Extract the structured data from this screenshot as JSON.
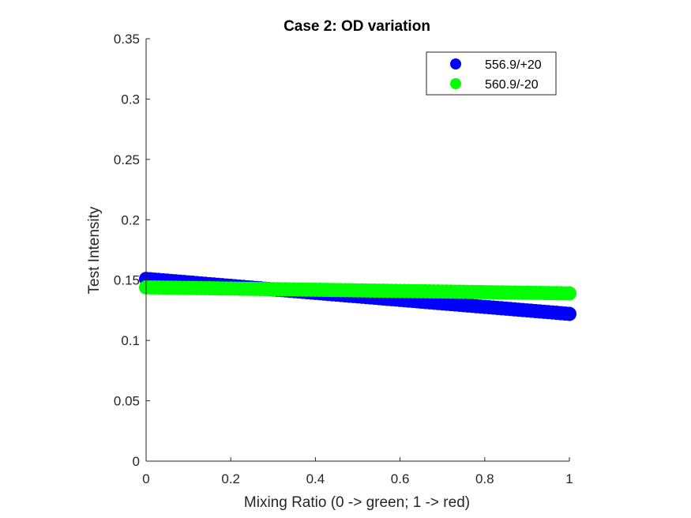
{
  "chart_data": {
    "type": "scatter",
    "title": "Case 2: OD variation",
    "xlabel": "Mixing Ratio (0 -> green; 1 -> red)",
    "ylabel": "Test Intensity",
    "xlim": [
      0,
      1
    ],
    "ylim": [
      0,
      0.35
    ],
    "xticks": [
      "0",
      "0.2",
      "0.4",
      "0.6",
      "0.8",
      "1"
    ],
    "yticks": [
      "0",
      "0.05",
      "0.1",
      "0.15",
      "0.2",
      "0.25",
      "0.3",
      "0.35"
    ],
    "grid": false,
    "legend_position": "top-right",
    "series": [
      {
        "name": "556.9/+20",
        "color": "#0000ff",
        "x_start": 0,
        "x_end": 1,
        "points": 101,
        "y_start": 0.151,
        "y_end": 0.122
      },
      {
        "name": "560.9/-20",
        "color": "#00ff00",
        "x_start": 0,
        "x_end": 1,
        "points": 101,
        "y_start": 0.144,
        "y_end": 0.139
      }
    ]
  }
}
